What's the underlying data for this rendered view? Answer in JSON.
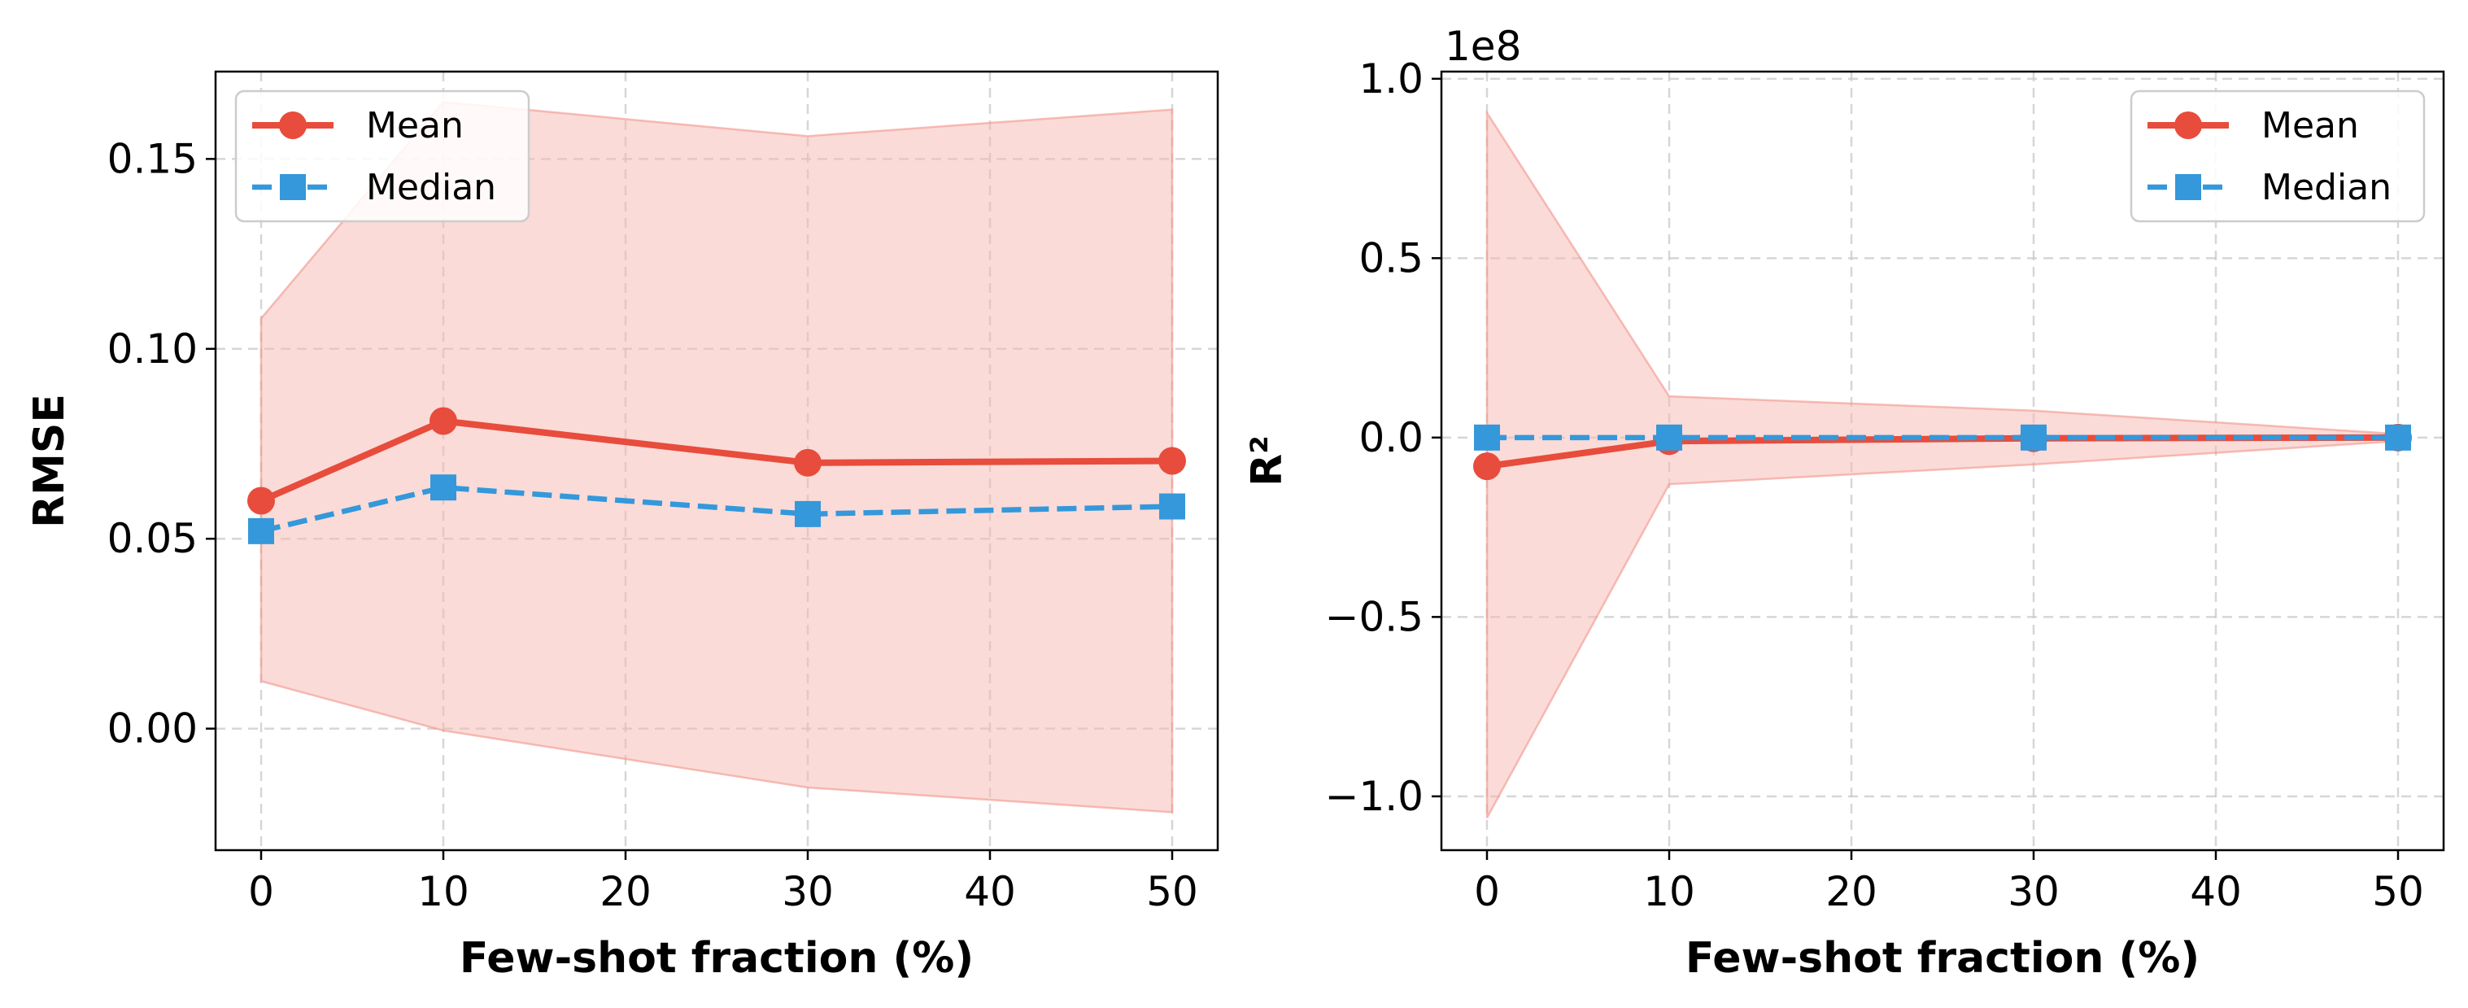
{
  "colors": {
    "mean": "#e74c3c",
    "median": "#3498db",
    "band_fill": "#f5b7b1",
    "band_edge": "#f1948a"
  },
  "chart_data": [
    {
      "type": "line",
      "id": "rmse",
      "title": "",
      "xlabel": "Few-shot fraction (%)",
      "ylabel": "RMSE",
      "x": [
        0,
        10,
        30,
        50
      ],
      "xlim": [
        -2.5,
        52.5
      ],
      "xticks": [
        0,
        10,
        20,
        30,
        40,
        50
      ],
      "xtick_labels": [
        "0",
        "10",
        "20",
        "30",
        "40",
        "50"
      ],
      "ylim": [
        -0.032,
        0.173
      ],
      "yticks": [
        0.0,
        0.05,
        0.1,
        0.15
      ],
      "ytick_labels": [
        "0.00",
        "0.05",
        "0.10",
        "0.15"
      ],
      "offset_text": "",
      "series": [
        {
          "name": "Mean",
          "values": [
            0.06,
            0.081,
            0.07,
            0.0705
          ],
          "style": "solid",
          "marker": "circle"
        },
        {
          "name": "Median",
          "values": [
            0.052,
            0.0635,
            0.0565,
            0.0585
          ],
          "style": "dashed",
          "marker": "square"
        }
      ],
      "band": {
        "lower": [
          0.0125,
          -0.0005,
          -0.0155,
          -0.022
        ],
        "upper": [
          0.108,
          0.165,
          0.156,
          0.163
        ]
      },
      "grid": true,
      "legend": {
        "position": "top-left",
        "entries": [
          "Mean",
          "Median"
        ]
      }
    },
    {
      "type": "line",
      "id": "r2",
      "title": "",
      "xlabel": "Few-shot fraction (%)",
      "ylabel": "R²",
      "x": [
        0,
        10,
        30,
        50
      ],
      "xlim": [
        -2.5,
        52.5
      ],
      "xticks": [
        0,
        10,
        20,
        30,
        40,
        50
      ],
      "xtick_labels": [
        "0",
        "10",
        "20",
        "30",
        "40",
        "50"
      ],
      "ylim": [
        -1.15,
        1.02
      ],
      "yticks": [
        -1.0,
        -0.5,
        0.0,
        0.5,
        1.0
      ],
      "ytick_labels": [
        "−1.0",
        "−0.5",
        "0.0",
        "0.5",
        "1.0"
      ],
      "offset_text": "1e8",
      "series": [
        {
          "name": "Mean",
          "values": [
            -0.08,
            -0.01,
            -0.002,
            0.0
          ],
          "style": "solid",
          "marker": "circle"
        },
        {
          "name": "Median",
          "values": [
            0.0,
            0.0,
            0.0,
            0.0
          ],
          "style": "dashed",
          "marker": "square"
        }
      ],
      "band": {
        "lower": [
          -1.06,
          -0.13,
          -0.075,
          -0.01
        ],
        "upper": [
          0.905,
          0.115,
          0.075,
          0.01
        ]
      },
      "grid": true,
      "legend": {
        "position": "top-right",
        "entries": [
          "Mean",
          "Median"
        ]
      }
    }
  ]
}
